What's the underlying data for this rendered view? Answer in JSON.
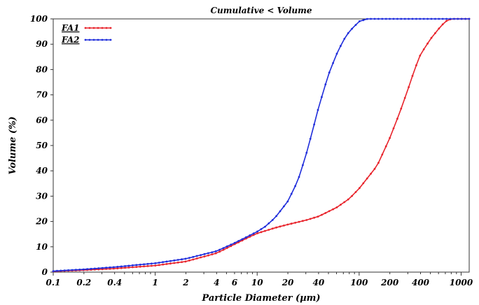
{
  "chart_data": {
    "type": "line",
    "title": "Cumulative < Volume",
    "xlabel": "Particle Diameter (µm)",
    "ylabel": "Volume (%)",
    "x_scale": "log",
    "xlim": [
      0.1,
      1200
    ],
    "ylim": [
      0,
      100
    ],
    "x_tick_labels": [
      "0.1",
      "0.2",
      "0.4",
      "1",
      "2",
      "4",
      "6",
      "10",
      "20",
      "40",
      "100",
      "200",
      "400",
      "1000"
    ],
    "x_tick_values": [
      0.1,
      0.2,
      0.4,
      1,
      2,
      4,
      6,
      10,
      20,
      40,
      100,
      200,
      400,
      1000
    ],
    "y_tick_labels": [
      "0",
      "10",
      "20",
      "30",
      "40",
      "50",
      "60",
      "70",
      "80",
      "90",
      "100"
    ],
    "y_tick_values": [
      0,
      10,
      20,
      30,
      40,
      50,
      60,
      70,
      80,
      90,
      100
    ],
    "legend_position": "top-left",
    "grid": false,
    "series": [
      {
        "name": "FA1",
        "color": "#e8232b",
        "x": [
          0.1,
          0.2,
          0.4,
          1,
          2,
          4,
          6,
          8,
          10,
          15,
          20,
          30,
          40,
          60,
          80,
          100,
          150,
          200,
          250,
          300,
          350,
          400,
          500,
          600,
          700,
          800,
          1000,
          1200
        ],
        "y": [
          0.3,
          0.8,
          1.4,
          2.6,
          4.2,
          7.5,
          11,
          13.5,
          15.3,
          17.5,
          18.8,
          20.5,
          22,
          25.5,
          29,
          33,
          42,
          53,
          63,
          72,
          80,
          86,
          92,
          96,
          99,
          100,
          100,
          100
        ]
      },
      {
        "name": "FA2",
        "color": "#1f2ddb",
        "x": [
          0.1,
          0.2,
          0.4,
          1,
          2,
          4,
          6,
          8,
          10,
          12,
          15,
          20,
          25,
          30,
          35,
          40,
          50,
          60,
          70,
          80,
          100,
          120,
          150,
          200,
          400,
          1000,
          1200
        ],
        "y": [
          0.4,
          1.1,
          2.0,
          3.5,
          5.3,
          8.3,
          11.5,
          14,
          16,
          18,
          21.5,
          28,
          36,
          46,
          56,
          65,
          78,
          86,
          91.5,
          95,
          99,
          100,
          100,
          100,
          100,
          100,
          100
        ]
      }
    ]
  }
}
